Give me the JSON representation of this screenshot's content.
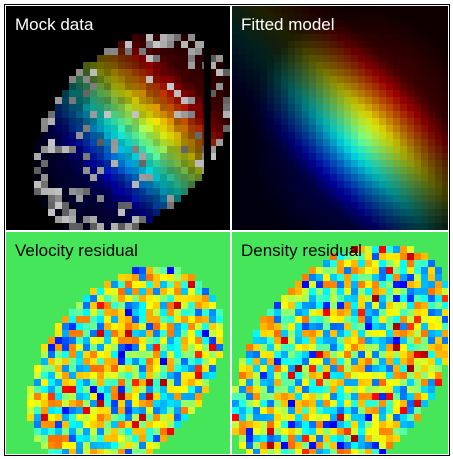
{
  "panels": [
    {
      "label": "Mock data",
      "label_color": "#ffffff",
      "kind": "mock_data"
    },
    {
      "label": "Fitted model",
      "label_color": "#ffffff",
      "kind": "fitted_model"
    },
    {
      "label": "Velocity residual",
      "label_color": "#000000",
      "kind": "velocity_residual"
    },
    {
      "label": "Density residual",
      "label_color": "#000000",
      "kind": "density_residual"
    }
  ],
  "colors": {
    "panel_background": "#000000",
    "residual_background": "#46e65a",
    "divider": "#ffffff"
  }
}
